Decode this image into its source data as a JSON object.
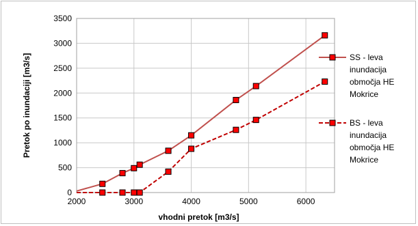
{
  "chart_data": {
    "type": "line",
    "title": "",
    "xlabel": "vhodni pretok [m3/s]",
    "ylabel": "Pretok po inundaciji [m3/s]",
    "xlim": [
      2000,
      6500
    ],
    "ylim": [
      0,
      3500
    ],
    "xticks": [
      2000,
      3000,
      4000,
      5000,
      6000
    ],
    "yticks": [
      0,
      500,
      1000,
      1500,
      2000,
      2500,
      3000,
      3500
    ],
    "grid": true,
    "legend_position": "right",
    "series": [
      {
        "name": "SS - leva inundacija območja HE Mokrice",
        "legend_lines": [
          "SS - leva",
          "inundacija",
          "območja HE",
          "Mokrice"
        ],
        "color": "#c0504d",
        "line_style": "solid",
        "marker": "square",
        "marker_color": "#ff0000",
        "x": [
          2000,
          2450,
          2800,
          3000,
          3100,
          3600,
          4000,
          4780,
          5130,
          6330
        ],
        "y": [
          30,
          175,
          390,
          490,
          560,
          840,
          1150,
          1860,
          2140,
          3160
        ],
        "marker_mask": [
          false,
          true,
          true,
          true,
          true,
          true,
          true,
          true,
          true,
          true
        ]
      },
      {
        "name": "BS - leva inundacija območja HE Mokrice",
        "legend_lines": [
          "BS - leva",
          "inundacija",
          "območja HE",
          "Mokrice"
        ],
        "color": "#c00000",
        "line_style": "dashed",
        "marker": "square",
        "marker_color": "#ff0000",
        "x": [
          2000,
          2450,
          2800,
          3000,
          3100,
          3600,
          4000,
          4780,
          5130,
          6330
        ],
        "y": [
          0,
          0,
          0,
          0,
          0,
          420,
          880,
          1260,
          1460,
          2230
        ],
        "marker_mask": [
          false,
          true,
          true,
          true,
          true,
          true,
          true,
          true,
          true,
          true
        ]
      }
    ]
  }
}
